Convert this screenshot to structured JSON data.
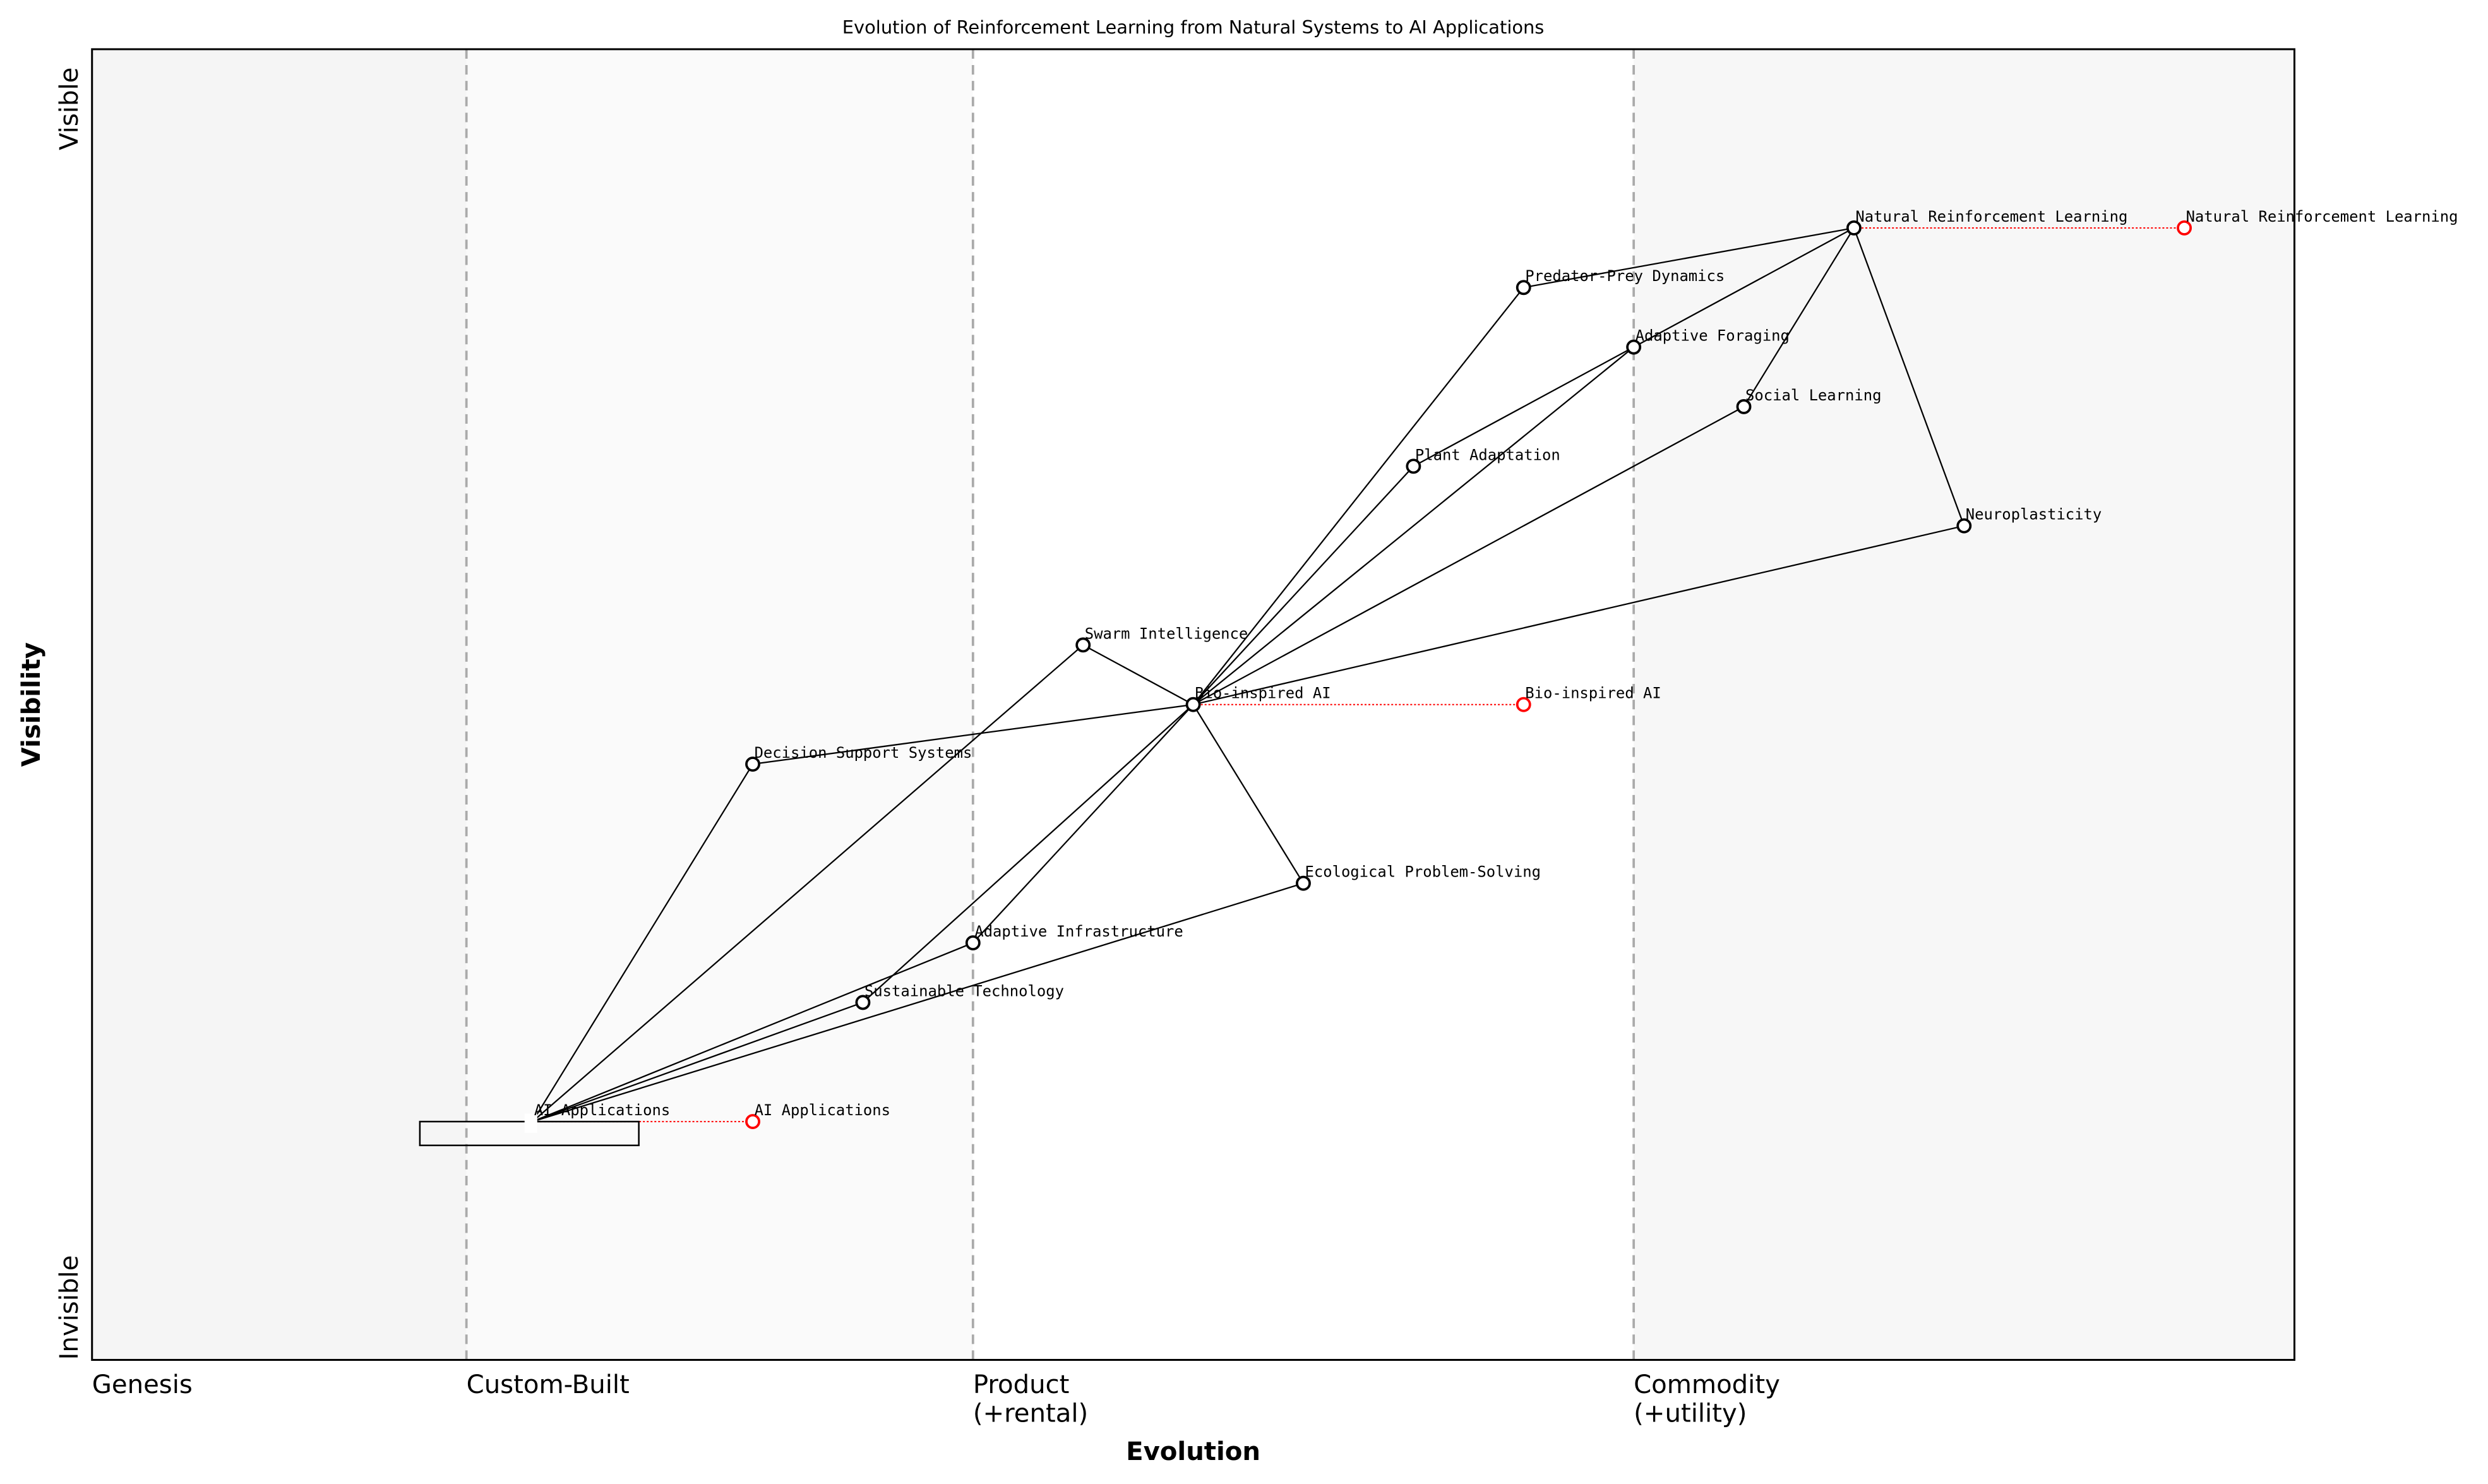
{
  "chart_data": {
    "type": "wardley-map",
    "title": "Evolution of Reinforcement Learning from Natural Systems to AI Applications",
    "xlabel": "Evolution",
    "ylabel": "Visibility",
    "xlim": [
      0,
      1
    ],
    "ylim": [
      -0.05,
      1.05
    ],
    "y_ticks": [
      {
        "label": "Invisible",
        "value": 0
      },
      {
        "label": "Visible",
        "value": 1
      }
    ],
    "stages": [
      {
        "label": "Genesis",
        "value": 0,
        "band_color": "#f5f5f5"
      },
      {
        "label": "Custom-Built",
        "value": 0.17,
        "band_color": "#fafafa"
      },
      {
        "label": "Product\n(+rental)",
        "value": 0.4,
        "band_color": "#ffffff"
      },
      {
        "label": "Commodity\n(+utility)",
        "value": 0.7,
        "band_color": "#f7f7f7"
      }
    ],
    "components": [
      {
        "id": "nrl",
        "name": "Natural Reinforcement Learning",
        "evolution": 0.8,
        "visibility": 0.9,
        "evolve_to": 0.95
      },
      {
        "id": "ppd",
        "name": "Predator-Prey Dynamics",
        "evolution": 0.65,
        "visibility": 0.85
      },
      {
        "id": "af",
        "name": "Adaptive Foraging",
        "evolution": 0.7,
        "visibility": 0.8
      },
      {
        "id": "sl",
        "name": "Social Learning",
        "evolution": 0.75,
        "visibility": 0.75
      },
      {
        "id": "pa",
        "name": "Plant Adaptation",
        "evolution": 0.6,
        "visibility": 0.7
      },
      {
        "id": "np",
        "name": "Neuroplasticity",
        "evolution": 0.85,
        "visibility": 0.65
      },
      {
        "id": "si",
        "name": "Swarm Intelligence",
        "evolution": 0.45,
        "visibility": 0.55
      },
      {
        "id": "bai",
        "name": "Bio-inspired AI",
        "evolution": 0.5,
        "visibility": 0.5,
        "evolve_to": 0.65
      },
      {
        "id": "dss",
        "name": "Decision Support Systems",
        "evolution": 0.3,
        "visibility": 0.45
      },
      {
        "id": "eps",
        "name": "Ecological Problem-Solving",
        "evolution": 0.55,
        "visibility": 0.35
      },
      {
        "id": "ai_inf",
        "name": "Adaptive Infrastructure",
        "evolution": 0.4,
        "visibility": 0.3
      },
      {
        "id": "st",
        "name": "Sustainable Technology",
        "evolution": 0.35,
        "visibility": 0.25
      },
      {
        "id": "aia",
        "name": "AI Applications",
        "evolution": 0.2,
        "visibility": 0.15,
        "evolve_to": 0.3,
        "anchor_box": true
      }
    ],
    "links": [
      [
        "nrl",
        "ppd"
      ],
      [
        "nrl",
        "af"
      ],
      [
        "nrl",
        "sl"
      ],
      [
        "nrl",
        "np"
      ],
      [
        "ppd",
        "bai"
      ],
      [
        "af",
        "pa"
      ],
      [
        "af",
        "bai"
      ],
      [
        "pa",
        "bai"
      ],
      [
        "sl",
        "bai"
      ],
      [
        "np",
        "bai"
      ],
      [
        "si",
        "bai"
      ],
      [
        "dss",
        "bai"
      ],
      [
        "eps",
        "bai"
      ],
      [
        "ai_inf",
        "bai"
      ],
      [
        "st",
        "bai"
      ],
      [
        "aia",
        "dss"
      ],
      [
        "aia",
        "si"
      ],
      [
        "aia",
        "ai_inf"
      ],
      [
        "aia",
        "st"
      ],
      [
        "aia",
        "eps"
      ]
    ],
    "colors": {
      "node": "#000000",
      "evolve": "#ff0000",
      "stage_line": "#aaaaaa"
    }
  }
}
